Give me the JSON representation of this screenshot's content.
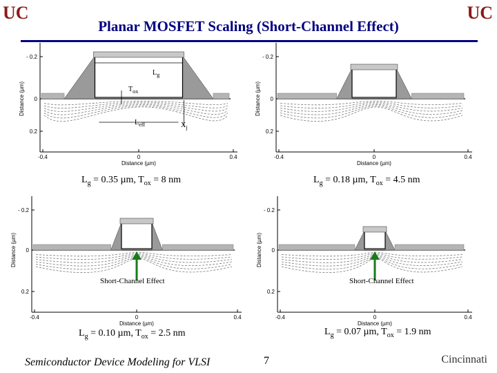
{
  "header": {
    "title": "Planar MOSFET Scaling (Short-Channel Effect)",
    "logo_left": "UC",
    "logo_right": "UC"
  },
  "axes": {
    "x_label": "Distance (µm)",
    "y_label": "Distance (µm)",
    "x_ticks": [
      "-0.4",
      "0",
      "0.4"
    ],
    "y_ticks": [
      "- 0.2",
      "0",
      "0.2"
    ]
  },
  "annotations": {
    "lg": "L",
    "lg_sub": "g",
    "tox": "T",
    "tox_sub": "ox",
    "leff": "L",
    "leff_sub": "eff",
    "xj": "X",
    "xj_sub": "j"
  },
  "panels": [
    {
      "lg_label": "L",
      "lg_sub": "g",
      "lg_value": " = 0.35 µm, ",
      "tox_label": "T",
      "tox_sub": "ox",
      "tox_value": " = 8 nm",
      "gate_length_um": 0.35,
      "oxide_nm": 8
    },
    {
      "lg_label": "L",
      "lg_sub": "g",
      "lg_value": " = 0.18 µm, ",
      "tox_label": "T",
      "tox_sub": "ox",
      "tox_value": " = 4.5 nm",
      "gate_length_um": 0.18,
      "oxide_nm": 4.5
    },
    {
      "lg_label": "L",
      "lg_sub": "g",
      "lg_value": " = 0.10 µm, ",
      "tox_label": "T",
      "tox_sub": "ox",
      "tox_value": " = 2.5 nm",
      "gate_length_um": 0.1,
      "oxide_nm": 2.5
    },
    {
      "lg_label": "L",
      "lg_sub": "g",
      "lg_value": " = 0.07 µm, ",
      "tox_label": "T",
      "tox_sub": "ox",
      "tox_value": " = 1.9 nm",
      "gate_length_um": 0.07,
      "oxide_nm": 1.9
    }
  ],
  "short_channel_label": "Short-Channel Effect",
  "footer": {
    "course": "Semiconductor Device Modeling for VLSI",
    "slide_number": "7",
    "university": "Cincinnati"
  },
  "colors": {
    "title": "#000080",
    "logo": "#8b1a1a",
    "arrow": "#1a7a1a",
    "device_fill": "#9a9a9a",
    "contour": "#777777"
  }
}
